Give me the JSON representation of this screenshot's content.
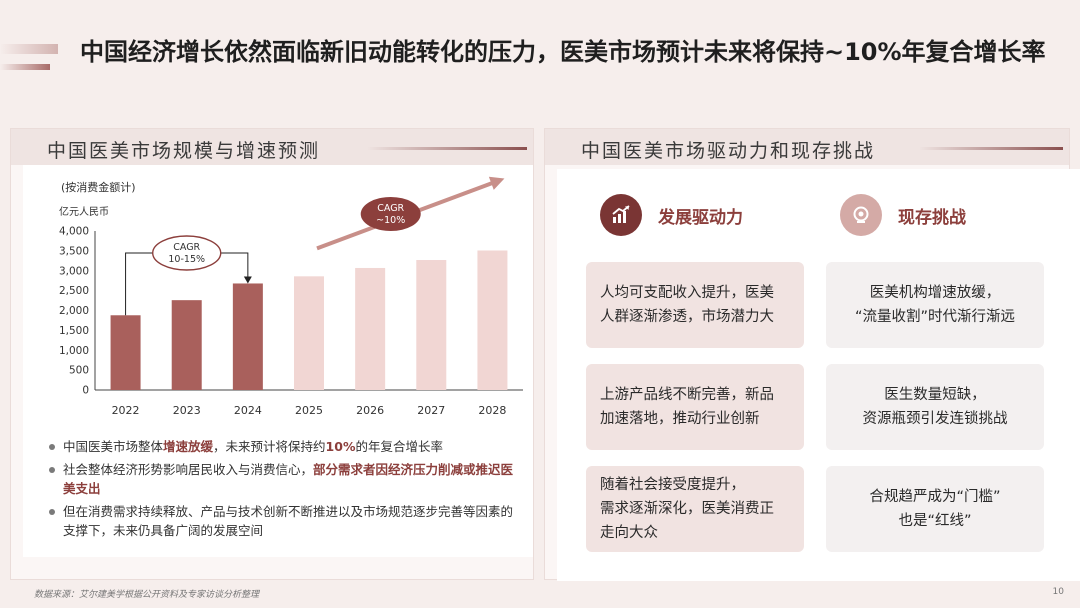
{
  "title": "中国经济增长依然面临新旧动能转化的压力，医美市场预计未来将保持~10%年复合增长率",
  "left_panel": {
    "heading": "中国医美市场规模与增速预测",
    "bullets": [
      {
        "parts": [
          {
            "t": "中国医美市场整体",
            "h": false
          },
          {
            "t": "增速放缓",
            "h": true
          },
          {
            "t": "，未来预计将保持约",
            "h": false
          },
          {
            "t": "10%",
            "h": true
          },
          {
            "t": "的年复合增长率",
            "h": false
          }
        ]
      },
      {
        "parts": [
          {
            "t": "社会整体经济形势影响居民收入与消费信心，",
            "h": false
          },
          {
            "t": "部分需求者因经济压力削减或推迟医美支出",
            "h": true
          }
        ]
      },
      {
        "parts": [
          {
            "t": "但在消费需求持续释放、产品与技术创新不断推进以及市场规范逐步完善等因素的支撑下，未来仍具备广阔的发展空间",
            "h": false
          }
        ]
      }
    ]
  },
  "chart_data": {
    "type": "bar",
    "subtitle": "(按消费金额计)",
    "ylabel": "亿元人民币",
    "categories": [
      "2022",
      "2023",
      "2024",
      "2025",
      "2026",
      "2027",
      "2028"
    ],
    "values": [
      1880,
      2260,
      2680,
      2860,
      3070,
      3270,
      3510
    ],
    "actual_color": "#a9605c",
    "forecast_color": "#f1d6d3",
    "actual_count": 3,
    "ylim": [
      0,
      4000
    ],
    "yticks": [
      0,
      500,
      1000,
      1500,
      2000,
      2500,
      3000,
      3500,
      4000
    ],
    "ytick_labels": [
      "0",
      "500",
      "1,000",
      "1,500",
      "2,000",
      "2,500",
      "3,000",
      "3,500",
      "4,000"
    ],
    "annotations": [
      {
        "text": [
          "CAGR",
          "10-15%"
        ]
      },
      {
        "text": [
          "CAGR",
          "~10%"
        ]
      }
    ]
  },
  "right_panel": {
    "heading": "中国医美市场驱动力和现存挑战",
    "drivers_label": "发展驱动力",
    "challenges_label": "现存挑战",
    "drivers": [
      [
        "人均可支配收入提升，医美",
        "人群逐渐渗透，市场潜力大"
      ],
      [
        "上游产品线不断完善，新品",
        "加速落地，推动行业创新"
      ],
      [
        "随着社会接受度提升，",
        "需求逐渐深化，医美消费正",
        "走向大众"
      ]
    ],
    "challenges": [
      [
        "医美机构增速放缓，",
        "“流量收割”时代渐行渐远"
      ],
      [
        "医生数量短缺，",
        "资源瓶颈引发连锁挑战"
      ],
      [
        "合规趋严成为“门槛”",
        "也是“红线”"
      ]
    ],
    "colors": {
      "driver_icon": "#7a3534",
      "challenge_icon": "#d4aaa6"
    }
  },
  "footer": {
    "source": "数据来源：艾尔建美学根据公开资料及专家访谈分析整理",
    "page": "10"
  }
}
